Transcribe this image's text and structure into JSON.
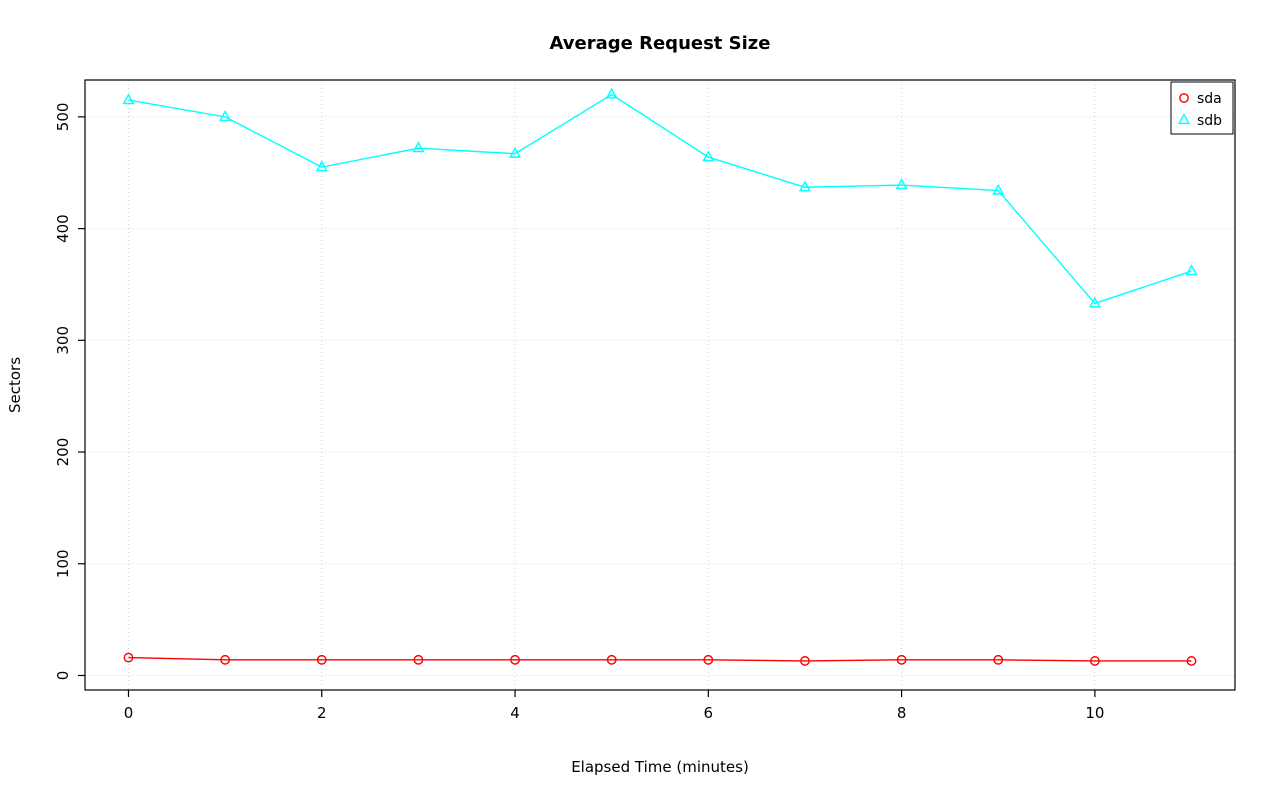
{
  "chart_data": {
    "type": "line",
    "title": "Average Request Size",
    "xlabel": "Elapsed Time (minutes)",
    "ylabel": "Sectors",
    "x": [
      0,
      1,
      2,
      3,
      4,
      5,
      6,
      7,
      8,
      9,
      10,
      11
    ],
    "series": [
      {
        "name": "sda",
        "color": "#FF0000",
        "marker": "circle",
        "values": [
          16,
          14,
          14,
          14,
          14,
          14,
          14,
          13,
          14,
          14,
          13,
          13
        ]
      },
      {
        "name": "sdb",
        "color": "#00FFFF",
        "marker": "triangle",
        "values": [
          515,
          500,
          455,
          472,
          467,
          520,
          464,
          437,
          439,
          434,
          333,
          362
        ]
      }
    ],
    "xlim": [
      -0.45,
      11.45
    ],
    "ylim": [
      -13,
      533
    ],
    "xticks": [
      0,
      2,
      4,
      6,
      8,
      10
    ],
    "yticks": [
      0,
      100,
      200,
      300,
      400,
      500
    ],
    "grid": true,
    "grid_color": "#d3d3d3",
    "axis_color": "#000000",
    "legend_position": "top-right",
    "legend_labels": [
      "sda",
      "sdb"
    ]
  }
}
